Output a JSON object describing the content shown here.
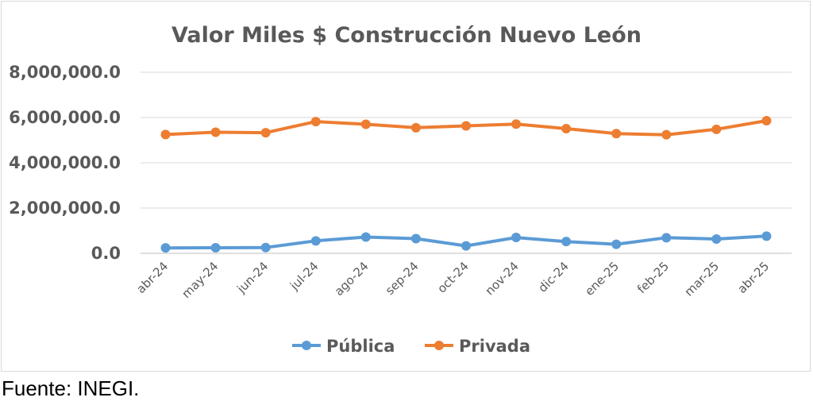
{
  "chart_data": {
    "type": "line",
    "title": "Valor Miles $ Construcción Nuevo León",
    "xlabel": "",
    "ylabel": "",
    "categories": [
      "abr-24",
      "may-24",
      "jun-24",
      "jul-24",
      "ago-24",
      "sep-24",
      "oct-24",
      "nov-24",
      "dic-24",
      "ene-25",
      "feb-25",
      "mar-25",
      "abr-25"
    ],
    "ylim": [
      0,
      8000000
    ],
    "yticks": [
      0,
      2000000,
      4000000,
      6000000,
      8000000
    ],
    "ytick_labels": [
      "0.0",
      "2,000,000.0",
      "4,000,000.0",
      "6,000,000.0",
      "8,000,000.0"
    ],
    "grid": true,
    "legend_position": "bottom",
    "series": [
      {
        "name": "Pública",
        "color": "#5b9bd5",
        "values": [
          240000,
          245000,
          255000,
          550000,
          720000,
          650000,
          330000,
          700000,
          520000,
          400000,
          690000,
          630000,
          760000
        ]
      },
      {
        "name": "Privada",
        "color": "#ed7d31",
        "values": [
          5250000,
          5350000,
          5330000,
          5820000,
          5700000,
          5550000,
          5630000,
          5710000,
          5510000,
          5290000,
          5240000,
          5480000,
          5860000
        ]
      }
    ]
  },
  "source_note": "Fuente: INEGI."
}
